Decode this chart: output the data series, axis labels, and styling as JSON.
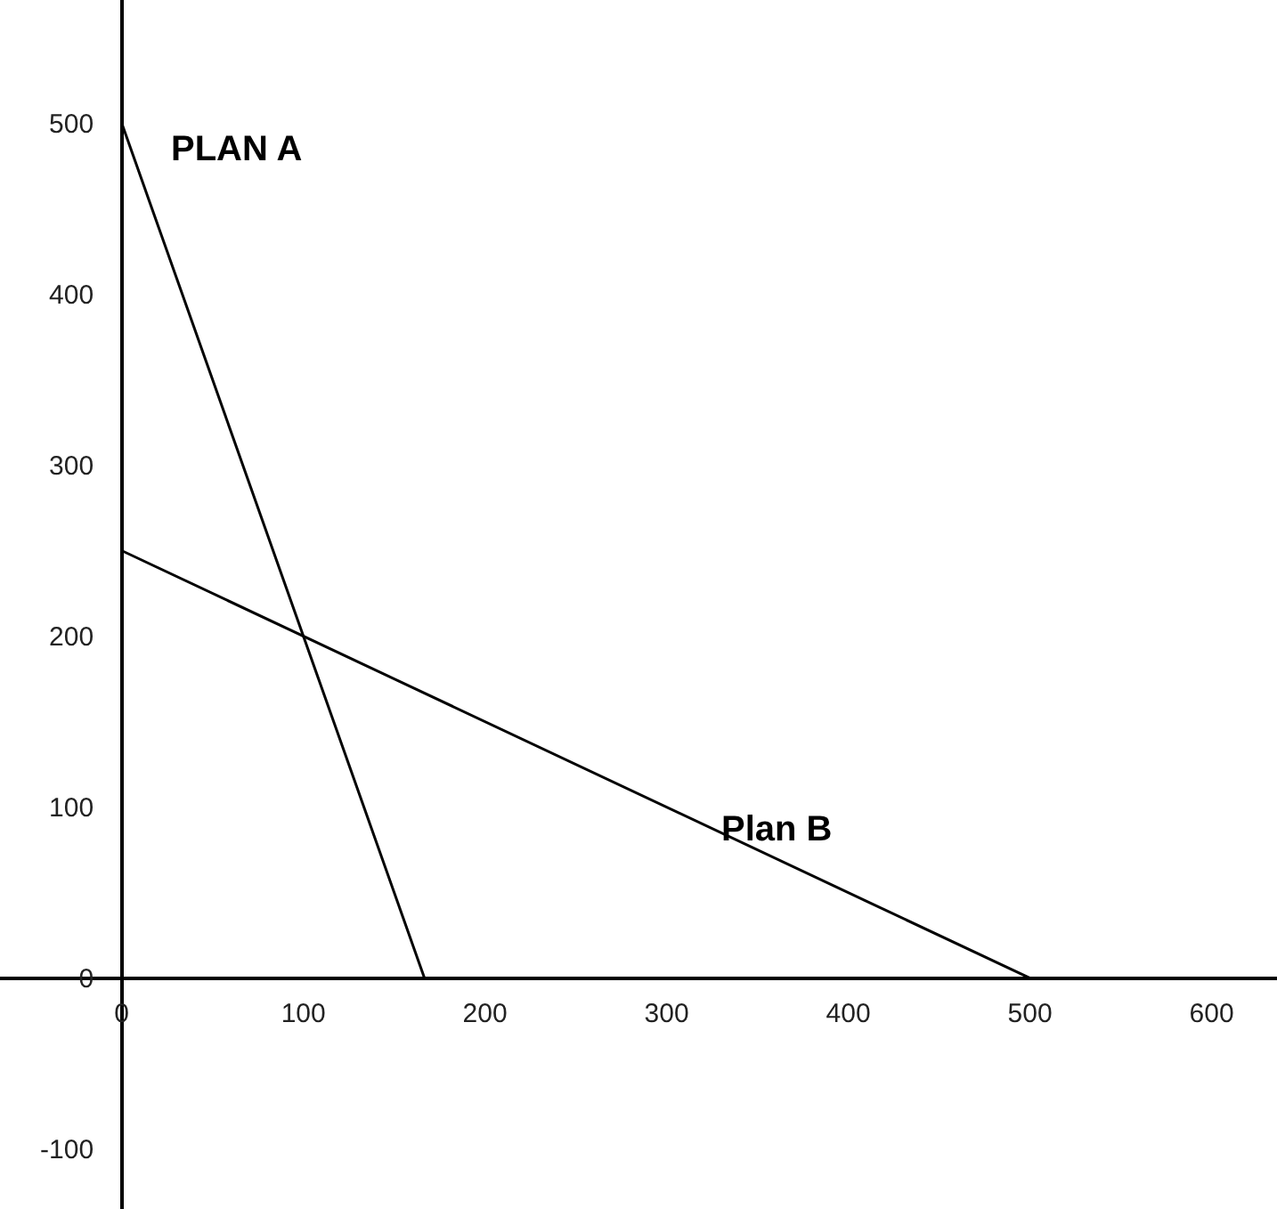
{
  "chart_data": {
    "type": "line",
    "series": [
      {
        "name": "PLAN A",
        "color": "#000000",
        "x": [
          0,
          166.7
        ],
        "values": [
          500,
          0
        ]
      },
      {
        "name": "Plan B",
        "color": "#000000",
        "x": [
          0,
          500
        ],
        "values": [
          250,
          0
        ]
      }
    ],
    "xlim": [
      -67,
      636
    ],
    "ylim": [
      -135,
      572
    ],
    "xticks": [
      0,
      100,
      200,
      300,
      400,
      500,
      600
    ],
    "yticks": [
      -100,
      0,
      100,
      200,
      300,
      400,
      500
    ],
    "legend": false,
    "marker": "none",
    "line_style": "solid"
  }
}
